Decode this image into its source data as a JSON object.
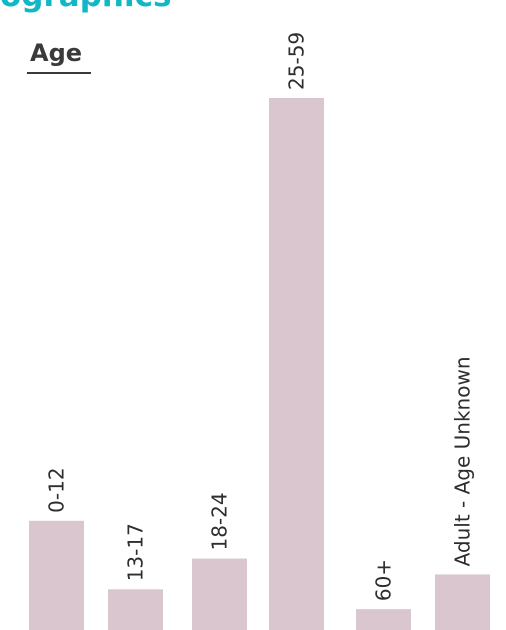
{
  "page": {
    "heading": "ographics",
    "section_title": "Age"
  },
  "colors": {
    "heading": "#11b7c6",
    "bar": "#d9c6cf",
    "text": "#2e2e2e"
  },
  "chart_data": {
    "type": "bar",
    "title": "Age",
    "categories": [
      "0-12",
      "13-17",
      "18-24",
      "25-59",
      "60+",
      "Adult - Age Unknown"
    ],
    "values": [
      110,
      41,
      72,
      536,
      21,
      56
    ],
    "ylim": [
      0,
      540
    ],
    "grid": false,
    "legend": "none",
    "data_labels": "category names rotated vertically above bars"
  }
}
